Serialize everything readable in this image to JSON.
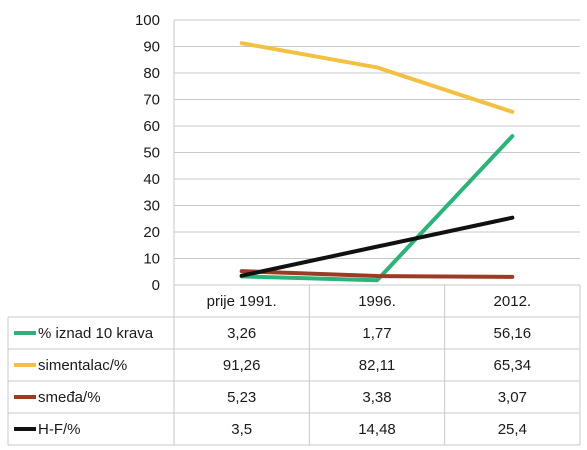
{
  "chart_data": {
    "type": "line",
    "categories": [
      "prije 1991.",
      "1996.",
      "2012."
    ],
    "ylim": [
      0,
      100
    ],
    "yticks": [
      0,
      10,
      20,
      30,
      40,
      50,
      60,
      70,
      80,
      90,
      100
    ],
    "grid": true,
    "legend": "data-table-left",
    "series": [
      {
        "name": "% iznad 10 krava",
        "color": "#2bb37a",
        "values": [
          3.26,
          1.77,
          56.16
        ],
        "labels": [
          "3,26",
          "1,77",
          "56,16"
        ]
      },
      {
        "name": "simentalac/%",
        "color": "#f2c043",
        "values": [
          91.26,
          82.11,
          65.34
        ],
        "labels": [
          "91,26",
          "82,11",
          "65,34"
        ]
      },
      {
        "name": "smeđa/%",
        "color": "#9b3b26",
        "values": [
          5.23,
          3.38,
          3.07
        ],
        "labels": [
          "5,23",
          "3,38",
          "3,07"
        ]
      },
      {
        "name": "H-F/%",
        "color": "#111111",
        "values": [
          3.5,
          14.48,
          25.4
        ],
        "labels": [
          "3,5",
          "14,48",
          "25,4"
        ]
      }
    ]
  }
}
